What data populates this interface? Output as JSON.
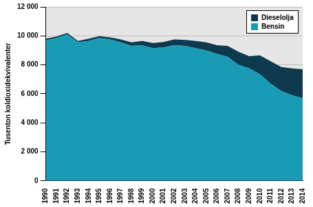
{
  "chart_data": {
    "type": "area",
    "stacked": true,
    "grid": true,
    "legend": "top right",
    "y_label": "Tusenton koldioxidekvivalenter",
    "categories": [
      "1990",
      "1991",
      "1992",
      "1993",
      "1994",
      "1995",
      "1996",
      "1997",
      "1998",
      "1999",
      "2000",
      "2001",
      "2002",
      "2003",
      "2004",
      "2005",
      "2006",
      "2007",
      "2008",
      "2009",
      "2010",
      "2011",
      "2012",
      "2013",
      "2014"
    ],
    "series": [
      {
        "name": "Bensin",
        "color": "#1a9bb5",
        "values": [
          9700,
          9850,
          10100,
          9550,
          9650,
          9850,
          9750,
          9550,
          9300,
          9350,
          9150,
          9200,
          9350,
          9300,
          9150,
          9000,
          8750,
          8550,
          8000,
          7750,
          7350,
          6700,
          6200,
          5900,
          5700
        ]
      },
      {
        "name": "Dieselolja",
        "color": "#0d3a4f",
        "values": [
          100,
          100,
          100,
          100,
          150,
          130,
          150,
          200,
          250,
          300,
          350,
          380,
          400,
          420,
          500,
          550,
          600,
          750,
          900,
          850,
          1300,
          1550,
          1650,
          1850,
          2000
        ]
      }
    ],
    "ylim": [
      0,
      12000
    ],
    "yticks": [
      0,
      {
        "value": 2000,
        "label": "2 000"
      },
      {
        "value": 4000,
        "label": "4 000"
      },
      {
        "value": 6000,
        "label": "6 000"
      },
      {
        "value": 8000,
        "label": "8 000"
      },
      {
        "value": 10000,
        "label": "10 000"
      },
      {
        "value": 12000,
        "label": "12 000"
      }
    ]
  }
}
